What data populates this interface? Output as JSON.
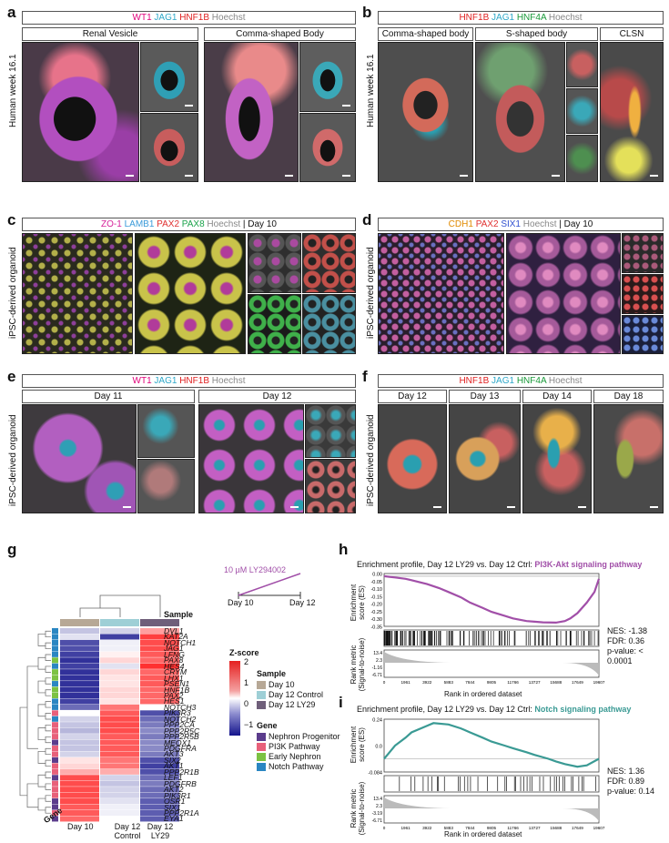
{
  "panels": {
    "a": {
      "letter": "a",
      "stains": [
        "WT1",
        "JAG1",
        "HNF1B",
        "Hoechst"
      ],
      "stain_colors": [
        "#e0007a",
        "#2fa8c9",
        "#e02020",
        "#888888"
      ],
      "side_label": "Human week 16.1",
      "sub_titles": [
        "Renal Vesicle",
        "Comma-shaped Body"
      ]
    },
    "b": {
      "letter": "b",
      "stains": [
        "HNF1B",
        "JAG1",
        "HNF4A",
        "Hoechst"
      ],
      "stain_colors": [
        "#e02020",
        "#2fa8c9",
        "#1a9a3a",
        "#888888"
      ],
      "side_label": "Human week 16.1",
      "sub_titles": [
        "Comma-shaped body",
        "S-shaped body",
        "CLSN"
      ]
    },
    "c": {
      "letter": "c",
      "stains": [
        "ZO-1",
        "LAMB1",
        "PAX2",
        "PAX8",
        "Hoechst"
      ],
      "stain_colors": [
        "#d6219a",
        "#3a9ad9",
        "#e03030",
        "#1aa34a",
        "#888888"
      ],
      "day": "| Day 10",
      "side_label": "iPSC-derived organoid"
    },
    "d": {
      "letter": "d",
      "stains": [
        "CDH1",
        "PAX2",
        "SIX1",
        "Hoechst"
      ],
      "stain_colors": [
        "#e08a00",
        "#e03030",
        "#3050d0",
        "#888888"
      ],
      "day": "| Day 10",
      "side_label": "iPSC-derived organoid"
    },
    "e": {
      "letter": "e",
      "stains": [
        "WT1",
        "JAG1",
        "HNF1B",
        "Hoechst"
      ],
      "stain_colors": [
        "#e0007a",
        "#2fa8c9",
        "#e02020",
        "#888888"
      ],
      "side_label": "iPSC-derived organoid",
      "sub_titles": [
        "Day 11",
        "Day 12"
      ]
    },
    "f": {
      "letter": "f",
      "stains": [
        "HNF1B",
        "JAG1",
        "HNF4A",
        "Hoechst"
      ],
      "stain_colors": [
        "#e02020",
        "#2fa8c9",
        "#1a9a3a",
        "#888888"
      ],
      "side_label": "iPSC-derived organoid",
      "sub_titles": [
        "Day 12",
        "Day 13",
        "Day 14",
        "Day 18"
      ]
    },
    "g": {
      "letter": "g",
      "treatment": "10 µM LY294002",
      "timeline_start": "Day 10",
      "timeline_end": "Day 12",
      "col_axis_label": "Gene",
      "sample_row_label": "Sample",
      "columns": [
        "Day 10",
        "Day 12 Control",
        "Day 12 LY29"
      ],
      "col_labels": [
        [
          "Day 10"
        ],
        [
          "Day 12",
          "Control"
        ],
        [
          "Day 12",
          "LY29"
        ]
      ],
      "zscore_title": "Z-score",
      "zscore_ticks": [
        "2",
        "1",
        "0",
        "−1"
      ],
      "sample_legend_title": "Sample",
      "sample_legend": [
        {
          "label": "Day 10",
          "color": "#b7a896"
        },
        {
          "label": "Day 12 Control",
          "color": "#9ecfd6"
        },
        {
          "label": "Day 12 LY29",
          "color": "#6f5f7a"
        }
      ],
      "gene_legend_title": "Gene",
      "gene_legend": [
        {
          "label": "Nephron Progenitor",
          "color": "#5b3c8c"
        },
        {
          "label": "PI3K Pathway",
          "color": "#e8607a"
        },
        {
          "label": "Early Nephron",
          "color": "#7cc242"
        },
        {
          "label": "Notch Pathway",
          "color": "#2a86c2"
        }
      ]
    },
    "h": {
      "letter": "h",
      "title_prefix": "Enrichment profile, Day 12 LY29 vs. Day 12 Ctrl: ",
      "title_pathway": "PI3K-Akt signaling pathway",
      "pathway_color": "#a14fa8",
      "es_label": "Enrichment score (ES)",
      "rm_label": "Rank metric (Signal-to-noise)",
      "x_label": "Rank in ordered dataset",
      "stats": [
        "NES: -1.38",
        "FDR: 0.36",
        "p-value: < 0.0001"
      ]
    },
    "i": {
      "letter": "i",
      "title_prefix": "Enrichment profile, Day 12 LY29 vs. Day 12 Ctrl: ",
      "title_pathway": "Notch signaling pathway",
      "pathway_color": "#3a9a94",
      "es_label": "Enrichment score (ES)",
      "rm_label": "Rank metric (Signal-to-noise)",
      "x_label": "Rank in ordered dataset",
      "stats": [
        "NES: 1.36",
        "FDR: 0.89",
        "p-value: 0.14"
      ]
    }
  },
  "chart_data": [
    {
      "type": "heatmap",
      "columns": [
        "Day 10",
        "Day 12 Control",
        "Day 12 LY29"
      ],
      "genes": [
        "DVL1",
        "KAT2A",
        "NOTCH1",
        "JAG1",
        "LFNG",
        "PAX8",
        "HES4",
        "CRYM",
        "LHX1",
        "PSEN1",
        "HNF1B",
        "PAX2",
        "HES1",
        "NOTCH3",
        "PIK3R3",
        "NOTCH2",
        "PPP2CA",
        "PPP2R5C",
        "PPP2R5B",
        "MEOX1",
        "PDGFRA",
        "AKT3",
        "SIX2",
        "AKT1",
        "PPP2R1B",
        "LEF1",
        "PDGFRB",
        "AKT2",
        "PIK3R1",
        "OSR1",
        "SIX1",
        "PPP2R1A",
        "EYA1"
      ],
      "gene_groups": [
        "Notch Pathway",
        "Notch Pathway",
        "Notch Pathway",
        "Notch Pathway",
        "Notch Pathway",
        "Early Nephron",
        "Notch Pathway",
        "Early Nephron",
        "Early Nephron",
        "Notch Pathway",
        "Early Nephron",
        "Early Nephron",
        "Notch Pathway",
        "Notch Pathway",
        "PI3K Pathway",
        "Notch Pathway",
        "PI3K Pathway",
        "PI3K Pathway",
        "PI3K Pathway",
        "Nephron Progenitor",
        "PI3K Pathway",
        "PI3K Pathway",
        "Nephron Progenitor",
        "PI3K Pathway",
        "PI3K Pathway",
        "Nephron Progenitor",
        "PI3K Pathway",
        "PI3K Pathway",
        "PI3K Pathway",
        "Nephron Progenitor",
        "Nephron Progenitor",
        "PI3K Pathway",
        "Nephron Progenitor"
      ],
      "zscores": [
        [
          -0.4,
          -0.3,
          0.7
        ],
        [
          -0.2,
          -1.3,
          1.4
        ],
        [
          -1.2,
          -0.1,
          1.3
        ],
        [
          -1.2,
          -0.1,
          1.3
        ],
        [
          -1.3,
          0.1,
          1.2
        ],
        [
          -1.4,
          0.3,
          1.1
        ],
        [
          -1.3,
          -0.2,
          1.5
        ],
        [
          -1.4,
          0.3,
          1.1
        ],
        [
          -1.4,
          0.2,
          1.2
        ],
        [
          -1.4,
          0.2,
          1.2
        ],
        [
          -1.4,
          0.3,
          1.1
        ],
        [
          -1.4,
          0.3,
          1.1
        ],
        [
          -1.3,
          0.2,
          1.1
        ],
        [
          -1.0,
          1.0,
          0.0
        ],
        [
          0.0,
          1.2,
          -1.2
        ],
        [
          -0.3,
          1.3,
          -1.0
        ],
        [
          -0.4,
          1.3,
          -0.9
        ],
        [
          -0.5,
          1.3,
          -0.8
        ],
        [
          -0.3,
          1.2,
          -0.9
        ],
        [
          -0.4,
          1.2,
          -0.8
        ],
        [
          -0.4,
          1.2,
          -0.8
        ],
        [
          -0.3,
          1.2,
          -0.9
        ],
        [
          0.2,
          1.0,
          -1.2
        ],
        [
          0.3,
          1.0,
          -1.3
        ],
        [
          0.6,
          0.6,
          -1.2
        ],
        [
          1.3,
          -0.3,
          -1.0
        ],
        [
          1.3,
          -0.4,
          -0.9
        ],
        [
          1.3,
          -0.3,
          -1.0
        ],
        [
          1.3,
          -0.3,
          -1.0
        ],
        [
          1.3,
          -0.2,
          -1.1
        ],
        [
          1.2,
          -0.1,
          -1.1
        ],
        [
          1.2,
          -0.1,
          -1.1
        ],
        [
          1.1,
          0.0,
          -1.1
        ]
      ],
      "zscore_range": [
        -2,
        2
      ]
    },
    {
      "type": "line",
      "title": "Enrichment profile, Day 12 LY29 vs. Day 12 Ctrl: PI3K-Akt signaling pathway",
      "xlabel": "Rank in ordered dataset",
      "ylabel": "Enrichment score (ES)",
      "x_ticks": [
        "0",
        "1961",
        "3922",
        "5883",
        "7844",
        "9805",
        "11766",
        "13727",
        "15688",
        "17649",
        "19607"
      ],
      "es_ticks": [
        "0.00",
        "-0.05",
        "-0.10",
        "-0.15",
        "-0.20",
        "-0.25",
        "-0.30",
        "-0.35"
      ],
      "rank_ticks": [
        "13.4",
        "2.3",
        "-1.16",
        "-6.71"
      ],
      "ylim": [
        -0.38,
        0.02
      ],
      "x": [
        0,
        500,
        1000,
        1961,
        2500,
        3922,
        5000,
        5883,
        7000,
        7844,
        9000,
        9805,
        11000,
        11766,
        13000,
        13727,
        14500,
        15688,
        16500,
        17000,
        17649,
        18500,
        19200,
        19607
      ],
      "es": [
        0,
        -0.005,
        -0.01,
        -0.02,
        -0.03,
        -0.06,
        -0.09,
        -0.12,
        -0.16,
        -0.2,
        -0.24,
        -0.27,
        -0.3,
        -0.32,
        -0.34,
        -0.345,
        -0.35,
        -0.352,
        -0.34,
        -0.32,
        -0.28,
        -0.2,
        -0.12,
        -0.02
      ]
    },
    {
      "type": "line",
      "title": "Enrichment profile, Day 12 LY29 vs. Day 12 Ctrl: Notch signaling pathway",
      "xlabel": "Rank in ordered dataset",
      "ylabel": "Enrichment score (ES)",
      "x_ticks": [
        "0",
        "1961",
        "3922",
        "5883",
        "7844",
        "9805",
        "11766",
        "13727",
        "15688",
        "17649",
        "19607"
      ],
      "es_ticks": [
        "0.24",
        "0.0",
        "-0.084"
      ],
      "rank_ticks": [
        "13.4",
        "2.3",
        "-3.19",
        "-6.71"
      ],
      "ylim": [
        -0.1,
        0.3
      ],
      "x": [
        0,
        500,
        1000,
        1961,
        2500,
        3922,
        4500,
        5883,
        7000,
        7844,
        9000,
        9805,
        11000,
        11766,
        13000,
        13727,
        15000,
        15688,
        16500,
        17649,
        18500,
        19607
      ],
      "es": [
        0,
        0.05,
        0.1,
        0.16,
        0.2,
        0.25,
        0.27,
        0.26,
        0.23,
        0.2,
        0.16,
        0.13,
        0.1,
        0.08,
        0.05,
        0.03,
        0.0,
        -0.02,
        -0.04,
        -0.06,
        -0.05,
        0.0
      ]
    }
  ]
}
